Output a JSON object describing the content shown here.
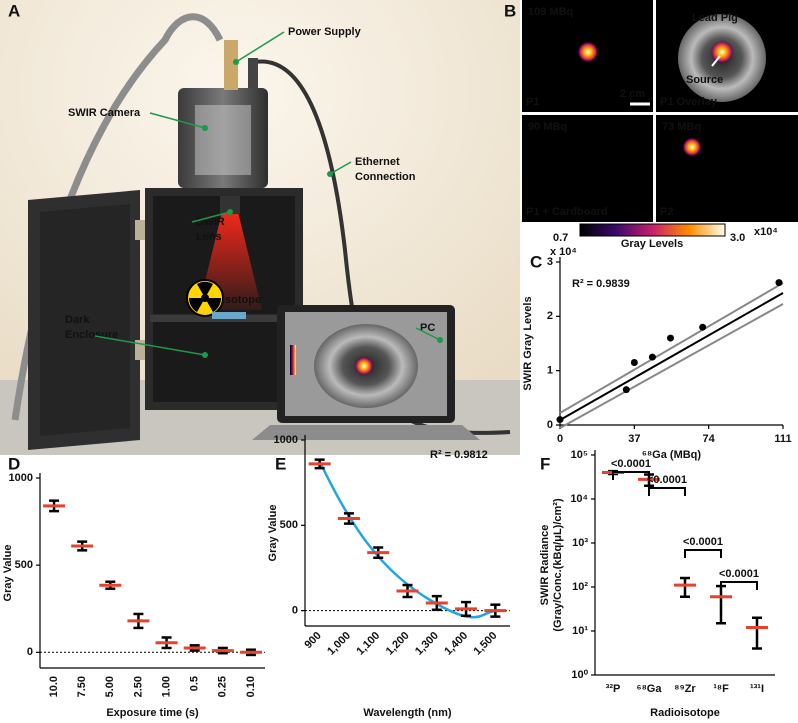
{
  "panel_labels": [
    "A",
    "B",
    "C",
    "D",
    "E",
    "F"
  ],
  "illustration": {
    "labels": [
      [
        "Power Supply"
      ],
      [
        "SWIR Camera"
      ],
      [
        "Ethernet",
        "Connection"
      ],
      [
        "SWIR",
        "Lens"
      ],
      [
        "Isotope"
      ],
      [
        "Dark",
        "Enclosure"
      ],
      [
        "PC"
      ]
    ]
  },
  "images": {
    "tiles": [
      {
        "activity": "109 MBq",
        "name": "P1",
        "scale": "2 cm"
      },
      {
        "name": "P1 Overlay",
        "labels": [
          "Lead Pig",
          "Source"
        ]
      },
      {
        "activity": "90 MBq",
        "name": "P1 + Cardboard"
      },
      {
        "activity": "73 MBq",
        "name": "P2"
      }
    ],
    "colorbar": {
      "min": "0.7",
      "label": "Gray Levels",
      "max": "3.0",
      "exponent": "x10⁴"
    }
  },
  "chart_data": [
    {
      "type": "scatter",
      "x": [
        0,
        33,
        37,
        46,
        55,
        71,
        109
      ],
      "values": [
        0.1,
        0.65,
        1.15,
        1.25,
        1.6,
        1.8,
        2.62
      ],
      "color": "#000000",
      "xlim": [
        0,
        111
      ],
      "xticks": [
        0,
        37,
        74,
        111
      ],
      "ylim": [
        0,
        3
      ],
      "yticks": [
        0,
        1,
        2,
        3
      ],
      "y_multiplier": "x 10⁴",
      "annotation": "R² = 0.9839",
      "xlabel": "⁶⁸Ga (MBq)",
      "ylabel": [
        "SWIR  Gray Levels"
      ]
    },
    {
      "type": "errorbar",
      "categories": [
        "10.0",
        "7.50",
        "5.00",
        "2.50",
        "1.00",
        "0.5",
        "0.25",
        "0.10"
      ],
      "values": [
        840,
        610,
        385,
        180,
        55,
        25,
        10,
        0
      ],
      "errors": [
        30,
        25,
        20,
        40,
        30,
        15,
        15,
        15
      ],
      "color": "#e8412c",
      "error_color": "#000000",
      "ylim": [
        -90,
        1000
      ],
      "yticks": [
        0,
        500,
        1000
      ],
      "zero_line": true,
      "tick_rotation": -90,
      "xlabel": "Exposure time (s)",
      "ylabel": [
        "Gray Value"
      ]
    },
    {
      "type": "errorbar",
      "categories": [
        "900",
        "1,000",
        "1,100",
        "1,200",
        "1,300",
        "1,400",
        "1,500"
      ],
      "values": [
        860,
        540,
        340,
        115,
        45,
        10,
        0
      ],
      "errors": [
        25,
        30,
        30,
        35,
        40,
        40,
        35
      ],
      "color": "#e8412c",
      "error_color": "#000000",
      "fit_color": "#1fa6e0",
      "ylim": [
        -90,
        1000
      ],
      "yticks": [
        0,
        500,
        1000
      ],
      "zero_line": true,
      "tick_rotation": -45,
      "annotation": "R² = 0.9812",
      "xlabel": "Wavelength (nm)",
      "ylabel": [
        "Gray Value"
      ]
    },
    {
      "type": "errorbar",
      "log_scale": true,
      "categories": [
        "³²P",
        "⁶⁸Ga",
        "⁸⁹Zr",
        "¹⁸F",
        "¹³¹I"
      ],
      "values": [
        40000,
        28000,
        110,
        60,
        12
      ],
      "errors": [
        3000,
        8000,
        50,
        45,
        8
      ],
      "color": "#e8412c",
      "error_color": "#000000",
      "ylim": [
        1,
        100000
      ],
      "yticks": [
        {
          "value": 1,
          "label": "10⁰"
        },
        {
          "value": 10,
          "label": "10¹"
        },
        {
          "value": 100,
          "label": "10²"
        },
        {
          "value": 1000,
          "label": "10³"
        },
        {
          "value": 10000,
          "label": "10⁴"
        },
        {
          "value": 100000,
          "label": "10⁵"
        }
      ],
      "annotations": [
        "<0.0001",
        "<0.0001",
        "<0.0001",
        "<0.0001"
      ],
      "tick_rotation": 0,
      "xlabel": "Radioisotope",
      "ylabel": [
        "SWIR Radiance",
        "(Gray/Conc.(kBq/μL)/cm²)"
      ]
    }
  ]
}
